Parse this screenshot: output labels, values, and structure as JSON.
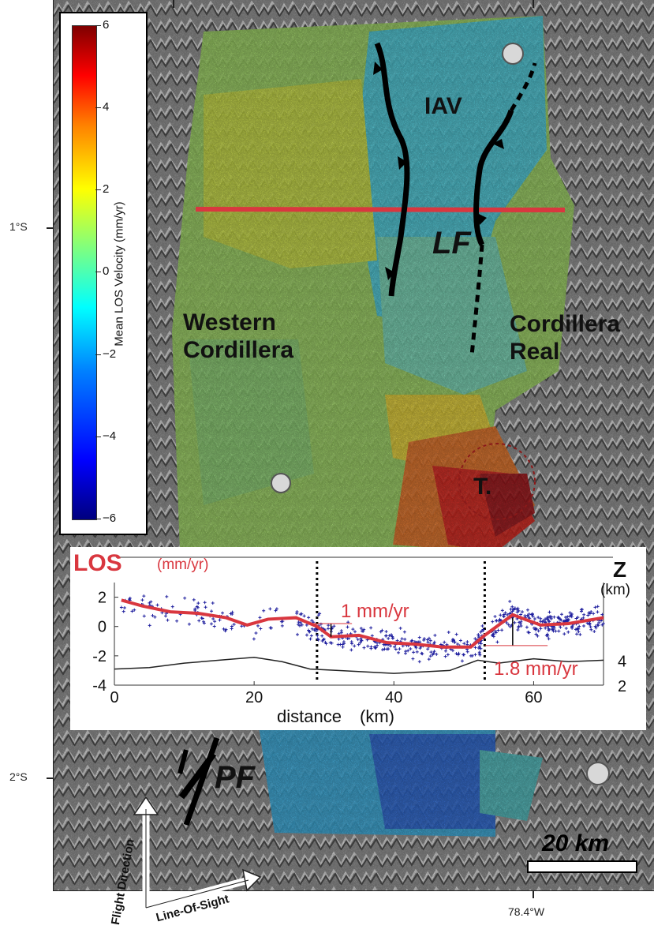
{
  "map": {
    "lat_labels": [
      "1°S",
      "2°S"
    ],
    "lon_label": "78.4°W",
    "labels": {
      "iav": "IAV",
      "lf": "LF",
      "western_1": "Western",
      "western_2": "Cordillera",
      "real_1": "Cordillera",
      "real_2": "Real",
      "t": "T.",
      "pf": "PF",
      "flight_direction": "Flight Direction",
      "line_of_sight": "Line-Of-Sight"
    },
    "scalebar": "20 km"
  },
  "colorbar": {
    "title": "Mean LOS Velocity (mm/yr)",
    "ticks": [
      "6",
      "4",
      "2",
      "0",
      "−2",
      "−4",
      "−6"
    ],
    "colors": [
      "#00007f",
      "#0000ff",
      "#00ffff",
      "#ffff00",
      "#ff0000",
      "#7f0000"
    ]
  },
  "chart_data": {
    "type": "scatter",
    "title": "",
    "ylabel_main": "LOS",
    "ylabel_unit": "(mm/yr)",
    "y2label": "Z",
    "y2label_unit": "(km)",
    "xlabel": "distance",
    "xlabel_unit": "(km)",
    "xlim": [
      0,
      70
    ],
    "ylim": [
      -4,
      3
    ],
    "x_ticks": [
      0,
      20,
      40,
      60
    ],
    "y_ticks": [
      2,
      0,
      -2,
      -4
    ],
    "y2_ticks": [
      4,
      2
    ],
    "fault_lines_x": [
      29,
      53
    ],
    "annotations": [
      "1 mm/yr",
      "1.8 mm/yr"
    ],
    "series": [
      {
        "kind": "mean_los",
        "color": "#d9373f",
        "x": [
          1,
          4,
          8,
          12,
          16,
          19,
          22,
          26,
          29,
          31,
          35,
          39,
          43,
          47,
          51,
          53,
          57,
          61,
          65,
          70
        ],
        "y": [
          1.8,
          1.4,
          1.0,
          0.9,
          0.6,
          0.1,
          0.5,
          0.6,
          0.0,
          -0.7,
          -0.6,
          -1.1,
          -1.2,
          -1.4,
          -1.4,
          -0.6,
          0.8,
          0.1,
          0.2,
          0.6
        ]
      },
      {
        "kind": "topography",
        "color": "#222222",
        "x": [
          0,
          5,
          10,
          15,
          20,
          24,
          28,
          32,
          36,
          40,
          44,
          48,
          52,
          55,
          60,
          65,
          70
        ],
        "y": [
          -2.9,
          -2.8,
          -2.5,
          -2.3,
          -2.1,
          -2.4,
          -2.9,
          -3.0,
          -3.1,
          -3.2,
          -3.1,
          -3.0,
          -2.3,
          -2.5,
          -2.2,
          -2.4,
          -2.3
        ]
      }
    ]
  }
}
